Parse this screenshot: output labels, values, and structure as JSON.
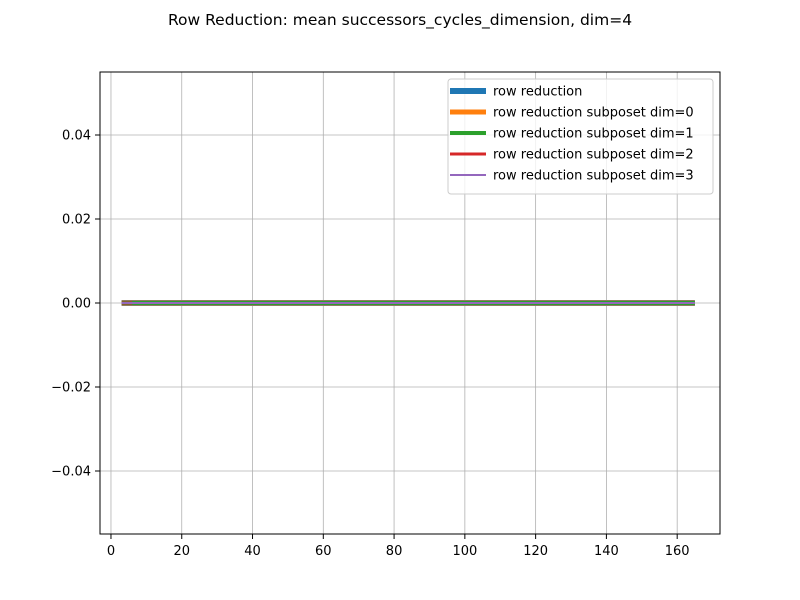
{
  "chart_data": {
    "type": "line",
    "title": "Row Reduction: mean successors_cycles_dimension, dim=4",
    "xlabel": "",
    "ylabel": "",
    "xlim": [
      -3.1,
      172.1
    ],
    "ylim": [
      -0.055,
      0.055
    ],
    "x_ticks": [
      0,
      20,
      40,
      60,
      80,
      100,
      120,
      140,
      160
    ],
    "y_ticks": [
      -0.04,
      -0.02,
      0.0,
      0.02,
      0.04
    ],
    "y_tick_labels": [
      "−0.04",
      "−0.02",
      "0.00",
      "0.02",
      "0.04"
    ],
    "grid": true,
    "legend_position": "upper right",
    "series": [
      {
        "name": "row reduction",
        "color": "#1f77b4",
        "line_width": 6,
        "x": [
          3,
          165
        ],
        "y": [
          0,
          0
        ]
      },
      {
        "name": "row reduction subposet dim=0",
        "color": "#ff7f0e",
        "line_width": 5,
        "x": [
          3,
          165
        ],
        "y": [
          0,
          0
        ]
      },
      {
        "name": "row reduction subposet dim=1",
        "color": "#2ca02c",
        "line_width": 4,
        "x": [
          3,
          165
        ],
        "y": [
          0,
          0
        ]
      },
      {
        "name": "row reduction subposet dim=2",
        "color": "#d62728",
        "line_width": 3,
        "x": [
          3,
          6
        ],
        "y": [
          0,
          0
        ]
      },
      {
        "name": "row reduction subposet dim=3",
        "color": "#9467bd",
        "line_width": 2,
        "x": [
          3,
          165
        ],
        "y": [
          0,
          0
        ]
      }
    ]
  }
}
